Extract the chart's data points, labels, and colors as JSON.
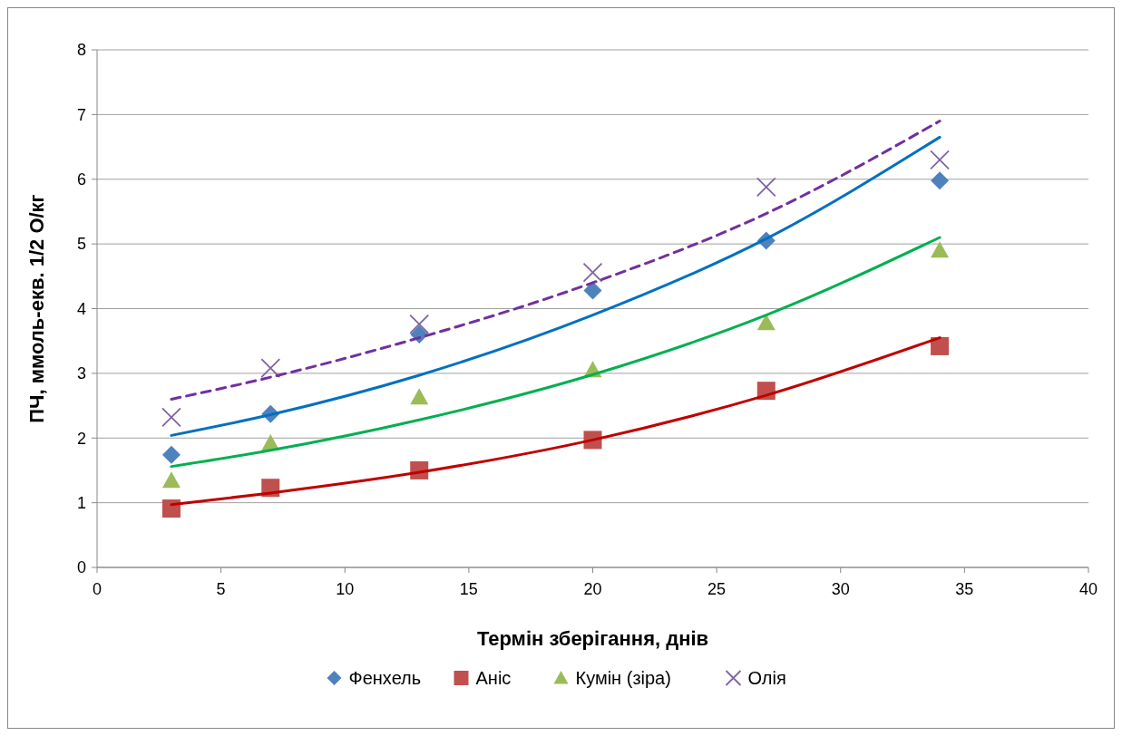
{
  "chart_data": {
    "type": "scatter",
    "xlabel": "Термін зберігання, днів",
    "ylabel": "ПЧ, ммоль-екв. 1/2 O/кг",
    "x": [
      3,
      7,
      13,
      20,
      27,
      34
    ],
    "series": [
      {
        "name": "Фенхель",
        "color": "#4f81bd",
        "marker": "diamond",
        "values": [
          1.74,
          2.37,
          3.6,
          4.28,
          5.05,
          5.98
        ]
      },
      {
        "name": "Аніс",
        "color": "#c0504d",
        "marker": "square",
        "values": [
          0.91,
          1.23,
          1.5,
          1.97,
          2.73,
          3.42
        ]
      },
      {
        "name": "Кумін (зіра)",
        "color": "#9bbb59",
        "marker": "triangle",
        "values": [
          1.34,
          1.92,
          2.63,
          3.05,
          3.78,
          4.9
        ]
      },
      {
        "name": "Олія",
        "color": "#8064a2",
        "marker": "cross",
        "values": [
          2.32,
          3.08,
          3.76,
          4.56,
          5.88,
          6.3
        ]
      },
      {
        "type": "line",
        "color": "#0070c0",
        "marker": "none",
        "line_style": "solid",
        "values": [
          2.04,
          2.36,
          2.97,
          3.9,
          5.08,
          6.65
        ]
      },
      {
        "type": "line",
        "color": "#c00000",
        "marker": "none",
        "line_style": "solid",
        "values": [
          0.97,
          1.15,
          1.47,
          1.97,
          2.66,
          3.55
        ]
      },
      {
        "type": "line",
        "color": "#00b050",
        "marker": "none",
        "line_style": "solid",
        "values": [
          1.56,
          1.81,
          2.28,
          2.98,
          3.9,
          5.1
        ]
      },
      {
        "type": "line",
        "color": "#7030a0",
        "marker": "none",
        "line_style": "dashed",
        "values": [
          2.6,
          2.94,
          3.55,
          4.4,
          5.47,
          6.9
        ]
      }
    ],
    "xlim": [
      0,
      40
    ],
    "xticks": [
      0,
      5,
      10,
      15,
      20,
      25,
      30,
      35,
      40
    ],
    "ylim": [
      0,
      8
    ],
    "yticks": [
      0,
      1,
      2,
      3,
      4,
      5,
      6,
      7,
      8
    ],
    "grid": "y",
    "legend": "bottom"
  }
}
